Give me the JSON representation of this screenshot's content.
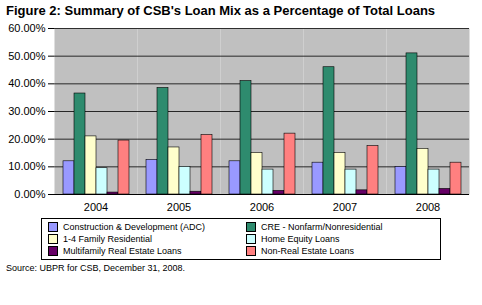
{
  "chart_data": {
    "type": "bar",
    "title": "Figure 2: Summary of CSB's Loan Mix as a Percentage of Total Loans",
    "source": "Source:  UBPR for CSB, December 31, 2008.",
    "categories": [
      "2004",
      "2005",
      "2006",
      "2007",
      "2008"
    ],
    "series": [
      {
        "name": "Construction & Development (ADC)",
        "color": "#9999ff",
        "values": [
          12,
          12.5,
          12,
          11.5,
          10
        ]
      },
      {
        "name": "CRE - Nonfarm/Nonresidential",
        "color": "#2e8b6e",
        "values": [
          36.5,
          38.5,
          41,
          46,
          51
        ]
      },
      {
        "name": "1-4 Family Residential",
        "color": "#ffffcc",
        "values": [
          21,
          17,
          15,
          15,
          16.5
        ]
      },
      {
        "name": "Home Equity Loans",
        "color": "#ccffff",
        "values": [
          9.5,
          10,
          9,
          9,
          9
        ]
      },
      {
        "name": "Multifamily Real Estate Loans",
        "color": "#660066",
        "values": [
          0.7,
          1,
          1.3,
          1.5,
          2
        ]
      },
      {
        "name": "Non-Real Estate Loans",
        "color": "#ff8080",
        "values": [
          19.5,
          21.5,
          22,
          17.5,
          11.5
        ]
      }
    ],
    "ylim": [
      0,
      60
    ],
    "yticks": [
      {
        "value": 0,
        "label": "0.00%"
      },
      {
        "value": 10,
        "label": "10.00%"
      },
      {
        "value": 20,
        "label": "20.00%"
      },
      {
        "value": 30,
        "label": "30.00%"
      },
      {
        "value": 40,
        "label": "40.00%"
      },
      {
        "value": 50,
        "label": "50.00%"
      },
      {
        "value": 60,
        "label": "60.00%"
      }
    ],
    "grid": true,
    "legend": "bottom"
  }
}
